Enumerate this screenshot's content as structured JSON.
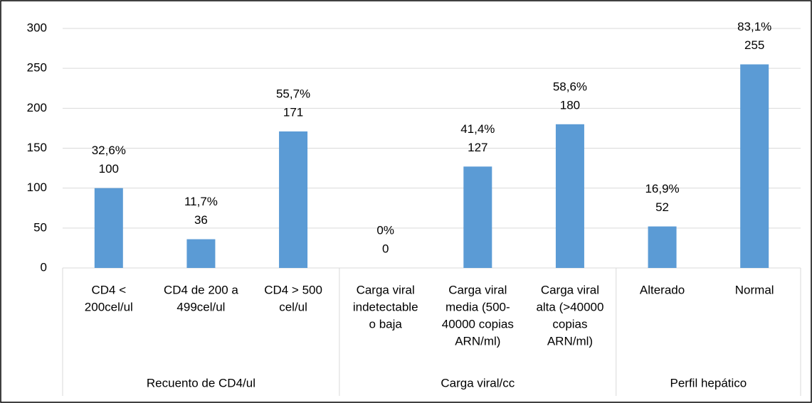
{
  "chart_data": {
    "type": "bar",
    "categories": [
      [
        "CD4 <",
        "200cel/ul"
      ],
      [
        "CD4 de 200 a",
        "499cel/ul"
      ],
      [
        "CD4 > 500",
        "cel/ul"
      ],
      [
        "Carga viral",
        "indetectable",
        "o baja"
      ],
      [
        "Carga viral",
        "media (500-",
        "40000 copias",
        "ARN/ml)"
      ],
      [
        "Carga viral",
        "alta (>40000",
        "copias",
        "ARN/ml)"
      ],
      [
        "Alterado"
      ],
      [
        "Normal"
      ]
    ],
    "groups": [
      {
        "name": "Recuento de CD4/ul",
        "count": 3
      },
      {
        "name": "Carga viral/cc",
        "count": 3
      },
      {
        "name": "Perfil hepático",
        "count": 2
      }
    ],
    "values": [
      100,
      36,
      171,
      0,
      127,
      180,
      52,
      255
    ],
    "percentages": [
      32.6,
      11.7,
      55.7,
      0,
      41.4,
      58.6,
      16.9,
      83.1
    ],
    "percentage_labels": [
      "32,6%",
      "11,7%",
      "55,7%",
      "0%",
      "41,4%",
      "58,6%",
      "16,9%",
      "83,1%"
    ],
    "color": "#5b9bd5",
    "ylim": [
      0,
      300
    ],
    "yticks": [
      0,
      50,
      100,
      150,
      200,
      250,
      300
    ],
    "grid": true
  }
}
